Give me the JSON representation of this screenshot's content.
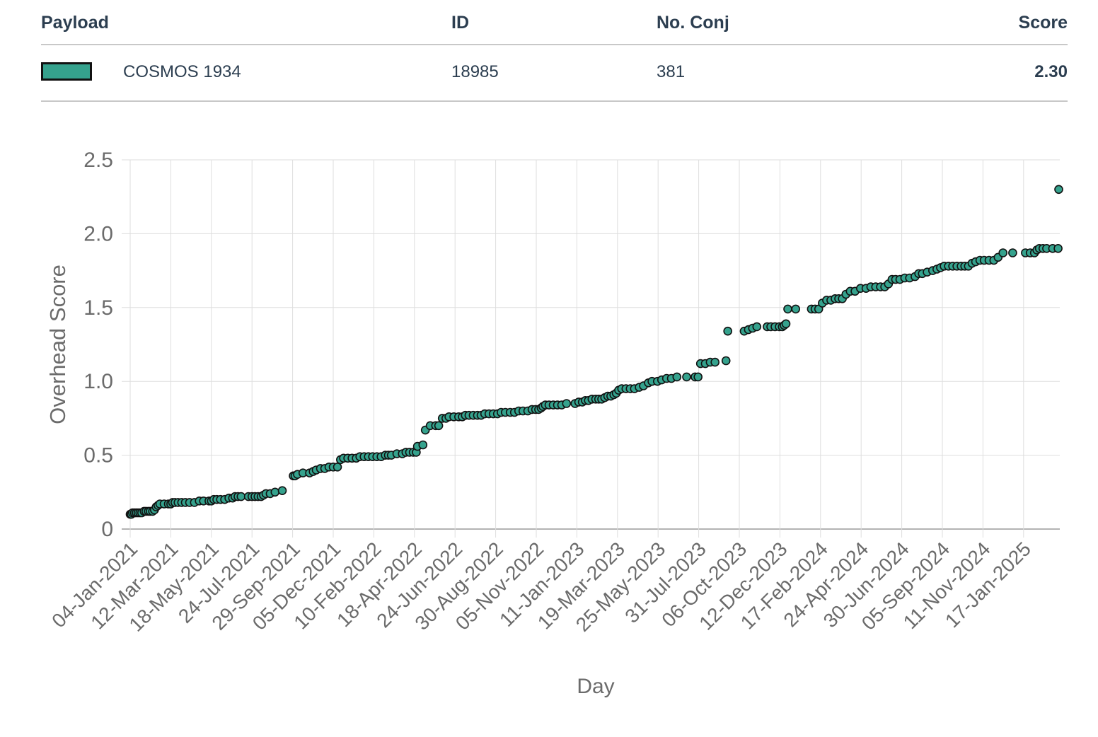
{
  "table": {
    "headers": {
      "payload": "Payload",
      "id": "ID",
      "conj": "No. Conj",
      "score": "Score"
    },
    "rows": [
      {
        "payload": "COSMOS 1934",
        "id": "18985",
        "conj": "381",
        "score": "2.30",
        "color": "#35a28d"
      }
    ]
  },
  "chart_data": {
    "type": "scatter",
    "xlabel": "Day",
    "ylabel": "Overhead Score",
    "ylim": [
      0,
      2.5
    ],
    "y_ticks": [
      "0",
      "0.5",
      "1.0",
      "1.5",
      "2.0",
      "2.5"
    ],
    "x_ticks": [
      "04-Jan-2021",
      "12-Mar-2021",
      "18-May-2021",
      "24-Jul-2021",
      "29-Sep-2021",
      "05-Dec-2021",
      "10-Feb-2022",
      "18-Apr-2022",
      "24-Jun-2022",
      "30-Aug-2022",
      "05-Nov-2022",
      "11-Jan-2023",
      "19-Mar-2023",
      "25-May-2023",
      "31-Jul-2023",
      "06-Oct-2023",
      "12-Dec-2023",
      "17-Feb-2024",
      "24-Apr-2024",
      "30-Jun-2024",
      "05-Sep-2024",
      "11-Nov-2024",
      "17-Jan-2025"
    ],
    "grid": true,
    "marker_color": "#35a28d",
    "series": [
      {
        "points": [
          [
            "2021-01-04",
            0.1
          ],
          [
            "2021-01-06",
            0.1
          ],
          [
            "2021-01-08",
            0.11
          ],
          [
            "2021-01-11",
            0.11
          ],
          [
            "2021-01-14",
            0.11
          ],
          [
            "2021-01-17",
            0.11
          ],
          [
            "2021-01-20",
            0.11
          ],
          [
            "2021-01-23",
            0.11
          ],
          [
            "2021-01-27",
            0.12
          ],
          [
            "2021-01-30",
            0.12
          ],
          [
            "2021-02-03",
            0.12
          ],
          [
            "2021-02-06",
            0.12
          ],
          [
            "2021-02-10",
            0.12
          ],
          [
            "2021-02-13",
            0.13
          ],
          [
            "2021-02-16",
            0.15
          ],
          [
            "2021-02-19",
            0.16
          ],
          [
            "2021-02-22",
            0.17
          ],
          [
            "2021-03-01",
            0.17
          ],
          [
            "2021-03-08",
            0.17
          ],
          [
            "2021-03-12",
            0.17
          ],
          [
            "2021-03-15",
            0.18
          ],
          [
            "2021-03-19",
            0.18
          ],
          [
            "2021-03-24",
            0.18
          ],
          [
            "2021-03-30",
            0.18
          ],
          [
            "2021-04-05",
            0.18
          ],
          [
            "2021-04-12",
            0.18
          ],
          [
            "2021-04-20",
            0.18
          ],
          [
            "2021-04-28",
            0.19
          ],
          [
            "2021-05-05",
            0.19
          ],
          [
            "2021-05-14",
            0.19
          ],
          [
            "2021-05-18",
            0.19
          ],
          [
            "2021-05-22",
            0.2
          ],
          [
            "2021-05-27",
            0.2
          ],
          [
            "2021-06-02",
            0.2
          ],
          [
            "2021-06-09",
            0.2
          ],
          [
            "2021-06-16",
            0.21
          ],
          [
            "2021-06-22",
            0.21
          ],
          [
            "2021-06-26",
            0.22
          ],
          [
            "2021-07-01",
            0.22
          ],
          [
            "2021-07-06",
            0.22
          ],
          [
            "2021-07-18",
            0.22
          ],
          [
            "2021-07-24",
            0.22
          ],
          [
            "2021-07-29",
            0.22
          ],
          [
            "2021-08-03",
            0.22
          ],
          [
            "2021-08-08",
            0.22
          ],
          [
            "2021-08-12",
            0.23
          ],
          [
            "2021-08-16",
            0.24
          ],
          [
            "2021-08-23",
            0.24
          ],
          [
            "2021-08-31",
            0.25
          ],
          [
            "2021-09-12",
            0.26
          ],
          [
            "2021-09-30",
            0.36
          ],
          [
            "2021-10-03",
            0.36
          ],
          [
            "2021-10-07",
            0.37
          ],
          [
            "2021-10-16",
            0.38
          ],
          [
            "2021-10-27",
            0.38
          ],
          [
            "2021-11-02",
            0.39
          ],
          [
            "2021-11-07",
            0.4
          ],
          [
            "2021-11-14",
            0.41
          ],
          [
            "2021-11-21",
            0.41
          ],
          [
            "2021-11-28",
            0.42
          ],
          [
            "2021-12-05",
            0.42
          ],
          [
            "2021-12-12",
            0.42
          ],
          [
            "2021-12-17",
            0.47
          ],
          [
            "2021-12-22",
            0.48
          ],
          [
            "2021-12-29",
            0.48
          ],
          [
            "2022-01-05",
            0.48
          ],
          [
            "2022-01-12",
            0.48
          ],
          [
            "2022-01-18",
            0.49
          ],
          [
            "2022-01-25",
            0.49
          ],
          [
            "2022-02-01",
            0.49
          ],
          [
            "2022-02-08",
            0.49
          ],
          [
            "2022-02-15",
            0.49
          ],
          [
            "2022-02-22",
            0.49
          ],
          [
            "2022-03-01",
            0.5
          ],
          [
            "2022-03-06",
            0.5
          ],
          [
            "2022-03-11",
            0.5
          ],
          [
            "2022-03-20",
            0.51
          ],
          [
            "2022-03-29",
            0.51
          ],
          [
            "2022-04-04",
            0.52
          ],
          [
            "2022-04-10",
            0.52
          ],
          [
            "2022-04-16",
            0.52
          ],
          [
            "2022-04-21",
            0.52
          ],
          [
            "2022-04-23",
            0.56
          ],
          [
            "2022-05-02",
            0.57
          ],
          [
            "2022-05-06",
            0.67
          ],
          [
            "2022-05-14",
            0.7
          ],
          [
            "2022-05-23",
            0.7
          ],
          [
            "2022-05-28",
            0.7
          ],
          [
            "2022-06-03",
            0.75
          ],
          [
            "2022-06-09",
            0.75
          ],
          [
            "2022-06-14",
            0.76
          ],
          [
            "2022-06-22",
            0.76
          ],
          [
            "2022-06-30",
            0.76
          ],
          [
            "2022-07-06",
            0.76
          ],
          [
            "2022-07-11",
            0.77
          ],
          [
            "2022-07-17",
            0.77
          ],
          [
            "2022-07-24",
            0.77
          ],
          [
            "2022-07-31",
            0.77
          ],
          [
            "2022-08-06",
            0.77
          ],
          [
            "2022-08-12",
            0.78
          ],
          [
            "2022-08-19",
            0.78
          ],
          [
            "2022-08-26",
            0.78
          ],
          [
            "2022-09-02",
            0.78
          ],
          [
            "2022-09-08",
            0.79
          ],
          [
            "2022-09-15",
            0.79
          ],
          [
            "2022-09-23",
            0.79
          ],
          [
            "2022-09-30",
            0.79
          ],
          [
            "2022-10-07",
            0.8
          ],
          [
            "2022-10-14",
            0.8
          ],
          [
            "2022-10-22",
            0.8
          ],
          [
            "2022-10-29",
            0.81
          ],
          [
            "2022-11-04",
            0.81
          ],
          [
            "2022-11-09",
            0.81
          ],
          [
            "2022-11-13",
            0.82
          ],
          [
            "2022-11-16",
            0.83
          ],
          [
            "2022-11-20",
            0.84
          ],
          [
            "2022-11-26",
            0.84
          ],
          [
            "2022-12-03",
            0.84
          ],
          [
            "2022-12-10",
            0.84
          ],
          [
            "2022-12-17",
            0.84
          ],
          [
            "2022-12-25",
            0.85
          ],
          [
            "2023-01-08",
            0.85
          ],
          [
            "2023-01-14",
            0.86
          ],
          [
            "2023-01-20",
            0.86
          ],
          [
            "2023-01-25",
            0.87
          ],
          [
            "2023-01-30",
            0.87
          ],
          [
            "2023-02-05",
            0.88
          ],
          [
            "2023-02-11",
            0.88
          ],
          [
            "2023-02-16",
            0.88
          ],
          [
            "2023-02-21",
            0.88
          ],
          [
            "2023-02-26",
            0.89
          ],
          [
            "2023-03-03",
            0.9
          ],
          [
            "2023-03-08",
            0.9
          ],
          [
            "2023-03-13",
            0.91
          ],
          [
            "2023-03-17",
            0.92
          ],
          [
            "2023-03-21",
            0.94
          ],
          [
            "2023-03-26",
            0.95
          ],
          [
            "2023-04-02",
            0.95
          ],
          [
            "2023-04-09",
            0.95
          ],
          [
            "2023-04-16",
            0.95
          ],
          [
            "2023-04-24",
            0.96
          ],
          [
            "2023-05-01",
            0.97
          ],
          [
            "2023-05-09",
            0.99
          ],
          [
            "2023-05-15",
            1.0
          ],
          [
            "2023-05-24",
            1.0
          ],
          [
            "2023-05-31",
            1.01
          ],
          [
            "2023-06-08",
            1.02
          ],
          [
            "2023-06-16",
            1.02
          ],
          [
            "2023-06-25",
            1.03
          ],
          [
            "2023-07-11",
            1.03
          ],
          [
            "2023-07-25",
            1.03
          ],
          [
            "2023-07-30",
            1.03
          ],
          [
            "2023-08-03",
            1.12
          ],
          [
            "2023-08-11",
            1.12
          ],
          [
            "2023-08-19",
            1.13
          ],
          [
            "2023-08-27",
            1.13
          ],
          [
            "2023-09-14",
            1.14
          ],
          [
            "2023-09-17",
            1.34
          ],
          [
            "2023-10-14",
            1.34
          ],
          [
            "2023-10-21",
            1.35
          ],
          [
            "2023-10-28",
            1.36
          ],
          [
            "2023-11-04",
            1.37
          ],
          [
            "2023-11-21",
            1.37
          ],
          [
            "2023-11-27",
            1.37
          ],
          [
            "2023-12-04",
            1.37
          ],
          [
            "2023-12-11",
            1.37
          ],
          [
            "2023-12-16",
            1.37
          ],
          [
            "2023-12-19",
            1.38
          ],
          [
            "2023-12-22",
            1.39
          ],
          [
            "2023-12-25",
            1.49
          ],
          [
            "2024-01-07",
            1.49
          ],
          [
            "2024-02-02",
            1.49
          ],
          [
            "2024-02-08",
            1.49
          ],
          [
            "2024-02-14",
            1.49
          ],
          [
            "2024-02-20",
            1.53
          ],
          [
            "2024-02-27",
            1.55
          ],
          [
            "2024-03-05",
            1.55
          ],
          [
            "2024-03-12",
            1.56
          ],
          [
            "2024-03-18",
            1.56
          ],
          [
            "2024-03-24",
            1.56
          ],
          [
            "2024-03-30",
            1.59
          ],
          [
            "2024-04-06",
            1.61
          ],
          [
            "2024-04-14",
            1.61
          ],
          [
            "2024-04-23",
            1.63
          ],
          [
            "2024-05-02",
            1.63
          ],
          [
            "2024-05-10",
            1.64
          ],
          [
            "2024-05-18",
            1.64
          ],
          [
            "2024-05-26",
            1.64
          ],
          [
            "2024-06-02",
            1.64
          ],
          [
            "2024-06-08",
            1.66
          ],
          [
            "2024-06-14",
            1.69
          ],
          [
            "2024-06-20",
            1.69
          ],
          [
            "2024-06-27",
            1.69
          ],
          [
            "2024-07-05",
            1.7
          ],
          [
            "2024-07-13",
            1.7
          ],
          [
            "2024-07-22",
            1.71
          ],
          [
            "2024-07-28",
            1.73
          ],
          [
            "2024-08-03",
            1.73
          ],
          [
            "2024-08-11",
            1.74
          ],
          [
            "2024-08-20",
            1.75
          ],
          [
            "2024-08-27",
            1.76
          ],
          [
            "2024-09-02",
            1.77
          ],
          [
            "2024-09-08",
            1.78
          ],
          [
            "2024-09-15",
            1.78
          ],
          [
            "2024-09-22",
            1.78
          ],
          [
            "2024-09-29",
            1.78
          ],
          [
            "2024-10-06",
            1.78
          ],
          [
            "2024-10-12",
            1.78
          ],
          [
            "2024-10-18",
            1.78
          ],
          [
            "2024-10-24",
            1.8
          ],
          [
            "2024-10-30",
            1.81
          ],
          [
            "2024-11-06",
            1.82
          ],
          [
            "2024-11-13",
            1.82
          ],
          [
            "2024-11-21",
            1.82
          ],
          [
            "2024-11-29",
            1.82
          ],
          [
            "2024-12-06",
            1.84
          ],
          [
            "2024-12-14",
            1.87
          ],
          [
            "2024-12-30",
            1.87
          ],
          [
            "2025-01-20",
            1.87
          ],
          [
            "2025-01-28",
            1.87
          ],
          [
            "2025-02-04",
            1.87
          ],
          [
            "2025-02-08",
            1.89
          ],
          [
            "2025-02-12",
            1.9
          ],
          [
            "2025-02-18",
            1.9
          ],
          [
            "2025-02-24",
            1.9
          ],
          [
            "2025-03-06",
            1.9
          ],
          [
            "2025-03-15",
            1.9
          ],
          [
            "2025-03-16",
            2.3
          ]
        ]
      }
    ]
  }
}
